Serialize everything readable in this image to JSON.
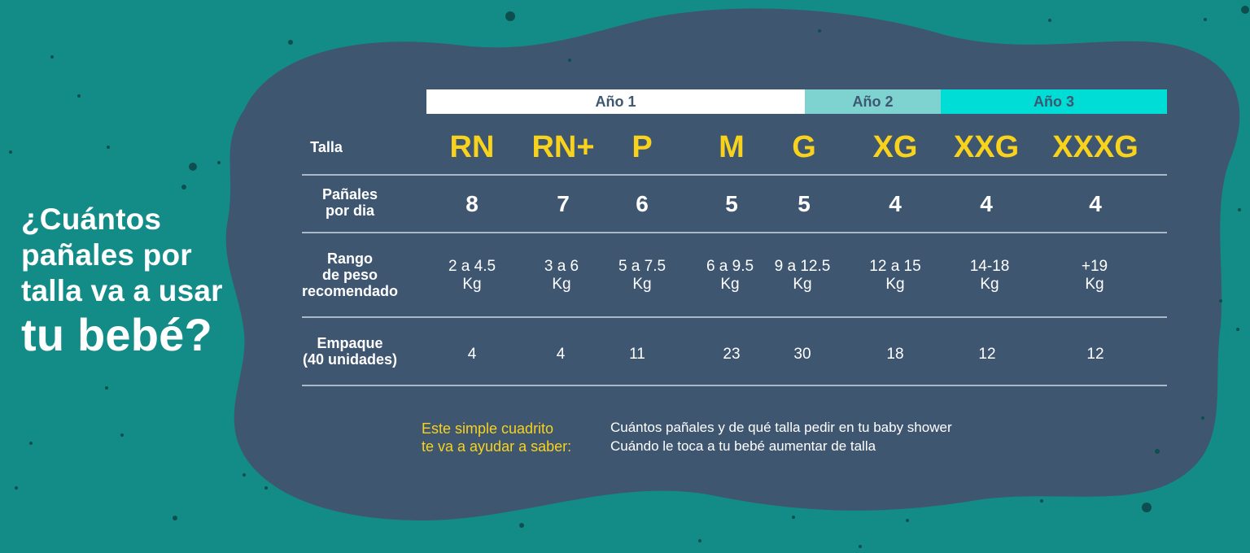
{
  "headline": {
    "line1": "¿Cuántos",
    "line2": "pañales por",
    "line3": "talla va a usar",
    "line4": "tu bebé?"
  },
  "years": [
    "Año 1",
    "Año 2",
    "Año 3"
  ],
  "colors": {
    "background": "#138c88",
    "blob": "#3e5670",
    "year1": "#ffffff",
    "year2": "#7ed3d0",
    "year3": "#00dcd6",
    "accent": "#f8d21c"
  },
  "row_labels": {
    "talla": "Talla",
    "panales_1": "Pañales",
    "panales_2": "por dia",
    "rango_1": "Rango",
    "rango_2": "de peso",
    "rango_3": "recomendado",
    "empaque_1": "Empaque",
    "empaque_2": "(40 unidades)"
  },
  "sizes": [
    "RN",
    "RN+",
    "P",
    "M",
    "G",
    "XG",
    "XXG",
    "XXXG"
  ],
  "panales_por_dia": [
    "8",
    "7",
    "6",
    "5",
    "5",
    "4",
    "4",
    "4"
  ],
  "rango_peso": [
    "2 a 4.5",
    "3 a 6",
    "5 a 7.5",
    "6 a 9.5",
    "9 a 12.5",
    "12 a 15",
    "14-18",
    "+19"
  ],
  "unit": "Kg",
  "empaque": [
    "4",
    "4",
    "11",
    "23",
    "30",
    "18",
    "12",
    "12"
  ],
  "footer": {
    "intro_1": "Este simple cuadrito",
    "intro_2": "te va a ayudar a saber:",
    "point_1": "Cuántos pañales y de qué talla pedir en tu baby shower",
    "point_2": "Cuándo le toca a tu bebé aumentar de talla"
  }
}
